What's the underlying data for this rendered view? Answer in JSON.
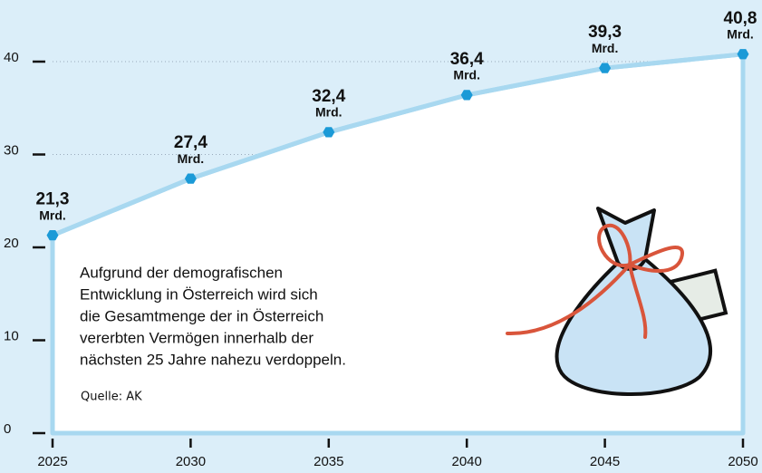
{
  "chart_data": {
    "type": "line",
    "x": [
      2025,
      2030,
      2035,
      2040,
      2045,
      2050
    ],
    "values": [
      21.3,
      27.4,
      32.4,
      36.4,
      39.3,
      40.8
    ],
    "value_labels": [
      "21,3",
      "27,4",
      "32,4",
      "36,4",
      "39,3",
      "40,8"
    ],
    "value_unit": "Mrd.",
    "xlim": [
      2025,
      2050
    ],
    "xticks": [
      2025,
      2030,
      2035,
      2040,
      2045,
      2050
    ],
    "ylim": [
      0,
      46
    ],
    "yticks": [
      0,
      10,
      20,
      30,
      40
    ],
    "color": "#a8d8f0",
    "marker_color": "#1b9ad7",
    "grid": true,
    "annotation": [
      "Aufgrund der demografischen",
      "Entwicklung in Österreich wird sich",
      "die Gesamtmenge der in Österreich",
      "vererbten Vermögen innerhalb der",
      "nächsten 25 Jahre nahezu verdoppeln."
    ],
    "source": "Quelle: AK"
  }
}
